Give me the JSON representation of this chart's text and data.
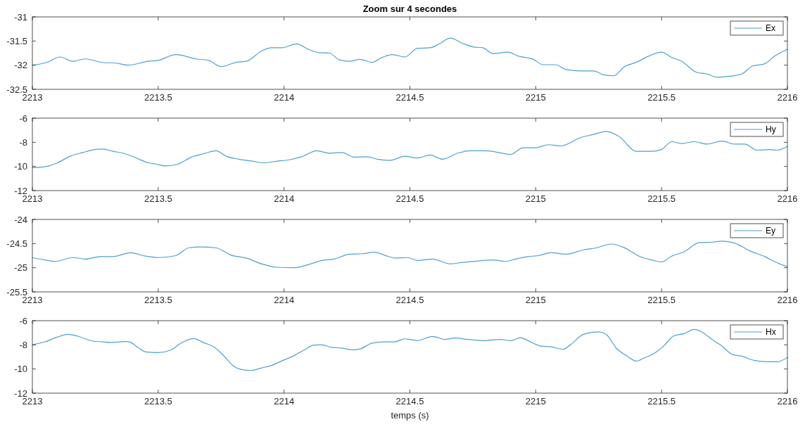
{
  "chart_data": [
    {
      "type": "line",
      "title": "Zoom sur 4 secondes",
      "x": [
        2213,
        2213.06,
        2213.11,
        2213.16,
        2213.21,
        2213.29,
        2213.32,
        2213.38,
        2213.46,
        2213.5,
        2213.57,
        2213.65,
        2213.7,
        2213.75,
        2213.81,
        2213.85,
        2213.91,
        2213.95,
        2213.99,
        2214.05,
        2214.1,
        2214.14,
        2214.18,
        2214.22,
        2214.26,
        2214.3,
        2214.35,
        2214.39,
        2214.43,
        2214.48,
        2214.53,
        2214.58,
        2214.62,
        2214.66,
        2214.71,
        2214.75,
        2214.79,
        2214.83,
        2214.89,
        2214.93,
        2214.99,
        2215.03,
        2215.08,
        2215.12,
        2215.18,
        2215.23,
        2215.27,
        2215.31,
        2215.35,
        2215.4,
        2215.45,
        2215.5,
        2215.54,
        2215.58,
        2215.64,
        2215.68,
        2215.72,
        2215.77,
        2215.82,
        2215.86,
        2215.91,
        2215.95,
        2216
      ],
      "series": [
        {
          "name": "Ex",
          "color": "#4f9fd0",
          "values": [
            -32.0,
            -31.94,
            -31.83,
            -31.92,
            -31.87,
            -31.95,
            -31.95,
            -32.0,
            -31.92,
            -31.9,
            -31.78,
            -31.87,
            -31.9,
            -32.03,
            -31.94,
            -31.92,
            -31.71,
            -31.64,
            -31.64,
            -31.56,
            -31.68,
            -31.74,
            -31.75,
            -31.89,
            -31.92,
            -31.88,
            -31.94,
            -31.84,
            -31.78,
            -31.83,
            -31.65,
            -31.64,
            -31.55,
            -31.44,
            -31.55,
            -31.62,
            -31.64,
            -31.76,
            -31.73,
            -31.81,
            -31.88,
            -31.99,
            -31.99,
            -32.09,
            -32.12,
            -32.12,
            -32.2,
            -32.22,
            -32.04,
            -31.94,
            -31.81,
            -31.73,
            -31.84,
            -31.92,
            -32.15,
            -32.18,
            -32.25,
            -32.23,
            -32.18,
            -32.02,
            -31.97,
            -31.81,
            -31.67
          ]
        }
      ],
      "xlim": [
        2213,
        2216
      ],
      "xticks": [
        2213,
        2213.5,
        2214,
        2214.5,
        2215,
        2215.5,
        2216
      ],
      "ylim": [
        -32.5,
        -31
      ],
      "yticks": [
        -32.5,
        -32,
        -31.5,
        -31
      ],
      "legend": "top right"
    },
    {
      "type": "line",
      "x": [
        2213,
        2213.06,
        2213.1,
        2213.15,
        2213.2,
        2213.24,
        2213.28,
        2213.32,
        2213.36,
        2213.41,
        2213.46,
        2213.49,
        2213.53,
        2213.58,
        2213.63,
        2213.68,
        2213.73,
        2213.77,
        2213.82,
        2213.87,
        2213.92,
        2213.97,
        2214.02,
        2214.07,
        2214.13,
        2214.18,
        2214.23,
        2214.28,
        2214.33,
        2214.37,
        2214.42,
        2214.48,
        2214.53,
        2214.58,
        2214.63,
        2214.69,
        2214.74,
        2214.8,
        2214.84,
        2214.9,
        2214.95,
        2215.0,
        2215.05,
        2215.1,
        2215.18,
        2215.23,
        2215.28,
        2215.33,
        2215.4,
        2215.46,
        2215.5,
        2215.54,
        2215.58,
        2215.63,
        2215.68,
        2215.74,
        2215.79,
        2215.83,
        2215.88,
        2215.93,
        2215.96,
        2216
      ],
      "series": [
        {
          "name": "Hy",
          "color": "#4f9fd0",
          "values": [
            -10.1,
            -9.98,
            -9.7,
            -9.15,
            -8.85,
            -8.63,
            -8.55,
            -8.75,
            -8.9,
            -9.28,
            -9.7,
            -9.8,
            -9.95,
            -9.8,
            -9.24,
            -8.95,
            -8.7,
            -9.15,
            -9.4,
            -9.55,
            -9.7,
            -9.57,
            -9.45,
            -9.2,
            -8.7,
            -8.9,
            -8.85,
            -9.23,
            -9.2,
            -9.4,
            -9.5,
            -9.15,
            -9.3,
            -9.05,
            -9.4,
            -8.9,
            -8.7,
            -8.7,
            -8.8,
            -9.0,
            -8.45,
            -8.45,
            -8.2,
            -8.3,
            -7.6,
            -7.35,
            -7.1,
            -7.5,
            -8.75,
            -8.75,
            -8.6,
            -7.95,
            -8.1,
            -7.95,
            -8.15,
            -7.9,
            -8.15,
            -8.15,
            -8.65,
            -8.6,
            -8.65,
            -8.35
          ]
        }
      ],
      "xlim": [
        2213,
        2216
      ],
      "xticks": [
        2213,
        2213.5,
        2214,
        2214.5,
        2215,
        2215.5,
        2216
      ],
      "ylim": [
        -12,
        -6
      ],
      "yticks": [
        -12,
        -10,
        -8,
        -6
      ],
      "legend": "top right"
    },
    {
      "type": "line",
      "x": [
        2213,
        2213.05,
        2213.09,
        2213.16,
        2213.21,
        2213.27,
        2213.32,
        2213.39,
        2213.45,
        2213.5,
        2213.57,
        2213.62,
        2213.67,
        2213.73,
        2213.79,
        2213.85,
        2213.91,
        2213.97,
        2214.04,
        2214.1,
        2214.15,
        2214.2,
        2214.26,
        2214.31,
        2214.36,
        2214.4,
        2214.44,
        2214.49,
        2214.53,
        2214.59,
        2214.66,
        2214.71,
        2214.77,
        2214.83,
        2214.88,
        2214.92,
        2214.97,
        2215.01,
        2215.06,
        2215.12,
        2215.19,
        2215.24,
        2215.3,
        2215.35,
        2215.41,
        2215.46,
        2215.5,
        2215.54,
        2215.59,
        2215.65,
        2215.7,
        2215.74,
        2215.79,
        2215.85,
        2215.91,
        2215.96,
        2216
      ],
      "series": [
        {
          "name": "Ey",
          "color": "#4f9fd0",
          "values": [
            -24.79,
            -24.84,
            -24.87,
            -24.79,
            -24.82,
            -24.77,
            -24.77,
            -24.69,
            -24.76,
            -24.79,
            -24.75,
            -24.59,
            -24.57,
            -24.59,
            -24.74,
            -24.8,
            -24.92,
            -24.99,
            -25.0,
            -24.93,
            -24.85,
            -24.82,
            -24.72,
            -24.71,
            -24.68,
            -24.74,
            -24.8,
            -24.79,
            -24.85,
            -24.82,
            -24.92,
            -24.89,
            -24.86,
            -24.84,
            -24.87,
            -24.82,
            -24.77,
            -24.75,
            -24.69,
            -24.72,
            -24.63,
            -24.59,
            -24.51,
            -24.58,
            -24.76,
            -24.84,
            -24.88,
            -24.76,
            -24.67,
            -24.48,
            -24.47,
            -24.45,
            -24.49,
            -24.65,
            -24.77,
            -24.9,
            -24.98
          ]
        }
      ],
      "xlim": [
        2213,
        2216
      ],
      "xticks": [
        2213,
        2213.5,
        2214,
        2214.5,
        2215,
        2215.5,
        2216
      ],
      "ylim": [
        -25.5,
        -24
      ],
      "yticks": [
        -25.5,
        -25,
        -24.5,
        -24
      ],
      "legend": "top right"
    },
    {
      "type": "line",
      "xlabel": "temps (s)",
      "x": [
        2213,
        2213.05,
        2213.1,
        2213.14,
        2213.18,
        2213.24,
        2213.28,
        2213.31,
        2213.37,
        2213.39,
        2213.42,
        2213.45,
        2213.5,
        2213.55,
        2213.59,
        2213.64,
        2213.68,
        2213.72,
        2213.76,
        2213.8,
        2213.83,
        2213.87,
        2213.91,
        2213.95,
        2213.99,
        2214.04,
        2214.08,
        2214.12,
        2214.15,
        2214.19,
        2214.23,
        2214.27,
        2214.3,
        2214.35,
        2214.4,
        2214.44,
        2214.48,
        2214.5,
        2214.53,
        2214.59,
        2214.64,
        2214.68,
        2214.73,
        2214.79,
        2214.86,
        2214.9,
        2214.94,
        2214.97,
        2215.02,
        2215.06,
        2215.11,
        2215.14,
        2215.19,
        2215.25,
        2215.28,
        2215.32,
        2215.36,
        2215.4,
        2215.43,
        2215.48,
        2215.51,
        2215.55,
        2215.59,
        2215.63,
        2215.66,
        2215.7,
        2215.74,
        2215.78,
        2215.82,
        2215.87,
        2215.92,
        2215.96,
        2216
      ],
      "series": [
        {
          "name": "Hx",
          "color": "#4f9fd0",
          "values": [
            -8.0,
            -7.75,
            -7.35,
            -7.13,
            -7.28,
            -7.69,
            -7.75,
            -7.8,
            -7.73,
            -7.8,
            -8.22,
            -8.58,
            -8.64,
            -8.43,
            -7.86,
            -7.48,
            -7.81,
            -8.16,
            -8.89,
            -9.77,
            -10.04,
            -10.12,
            -9.92,
            -9.71,
            -9.34,
            -8.89,
            -8.43,
            -8.02,
            -8.0,
            -8.21,
            -8.27,
            -8.41,
            -8.35,
            -7.86,
            -7.75,
            -7.75,
            -7.5,
            -7.55,
            -7.65,
            -7.3,
            -7.55,
            -7.44,
            -7.55,
            -7.65,
            -7.55,
            -7.65,
            -7.4,
            -7.65,
            -8.1,
            -8.16,
            -8.37,
            -7.96,
            -7.13,
            -6.93,
            -7.13,
            -8.27,
            -8.89,
            -9.34,
            -9.1,
            -8.58,
            -8.06,
            -7.24,
            -7.07,
            -6.72,
            -6.93,
            -7.55,
            -8.1,
            -8.79,
            -8.95,
            -9.3,
            -9.4,
            -9.4,
            -9.05
          ]
        }
      ],
      "xlim": [
        2213,
        2216
      ],
      "xticks": [
        2213,
        2213.5,
        2214,
        2214.5,
        2215,
        2215.5,
        2216
      ],
      "ylim": [
        -12,
        -6
      ],
      "yticks": [
        -12,
        -10,
        -8,
        -6
      ],
      "legend": "top right"
    }
  ]
}
